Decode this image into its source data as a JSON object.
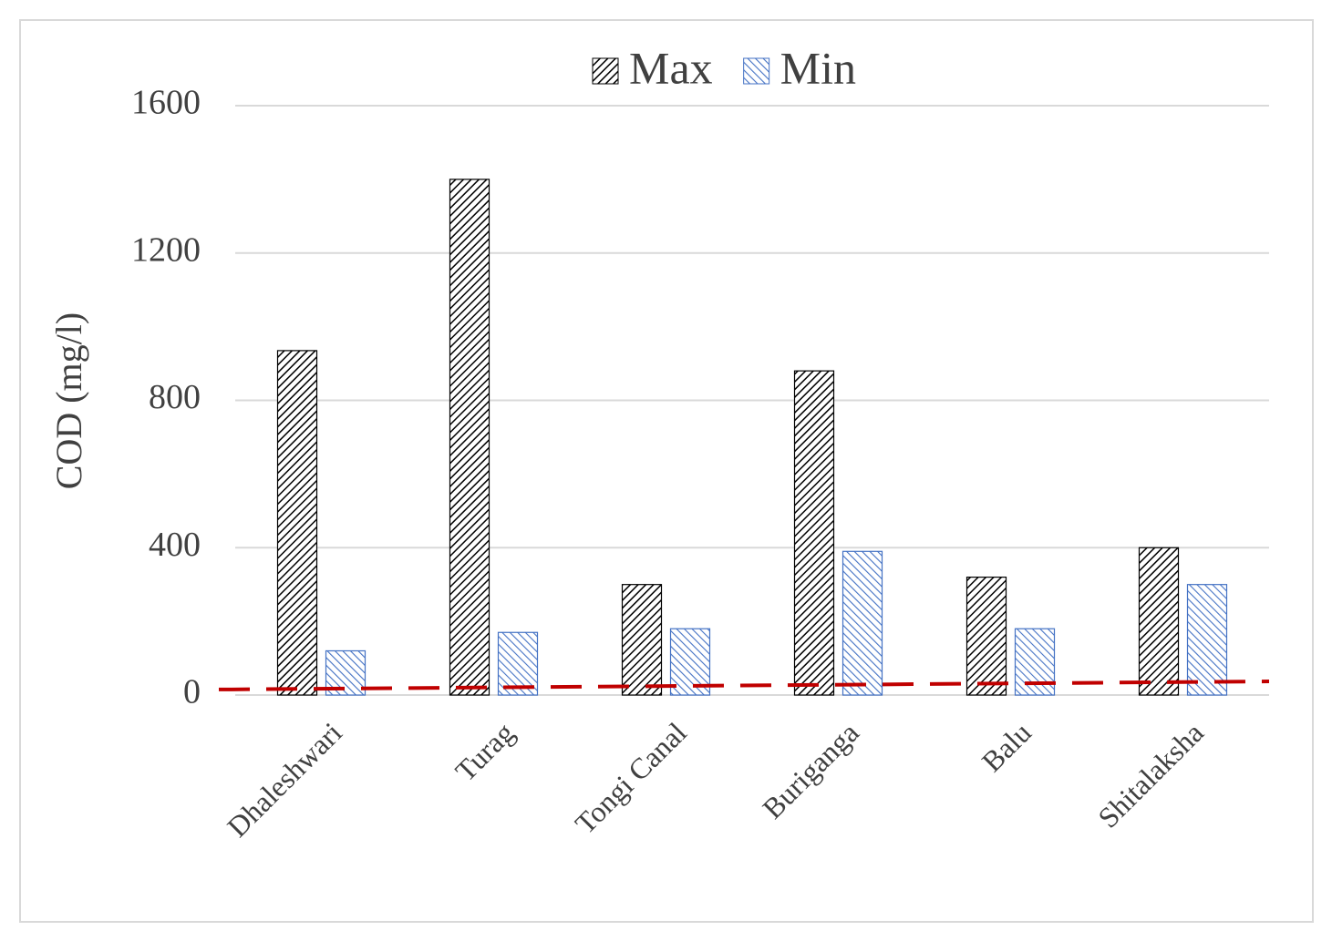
{
  "chart_data": {
    "type": "bar",
    "y_label": "COD (mg/l)",
    "categories": [
      "Dhaleshwari",
      "Turag",
      "Tongi Canal",
      "Buriganga",
      "Balu",
      "Shitalaksha"
    ],
    "series": [
      {
        "name": "Max",
        "color": "#000000",
        "values": [
          935,
          1400,
          300,
          880,
          320,
          400
        ]
      },
      {
        "name": "Min",
        "color": "#4472c4",
        "values": [
          120,
          170,
          180,
          390,
          180,
          300
        ]
      }
    ],
    "threshold": {
      "start": 15,
      "end": 37,
      "color": "#c00000"
    },
    "ylim": [
      0,
      1600
    ],
    "yticks": [
      0,
      400,
      800,
      1200,
      1600
    ],
    "grid": true,
    "legend": "top"
  }
}
